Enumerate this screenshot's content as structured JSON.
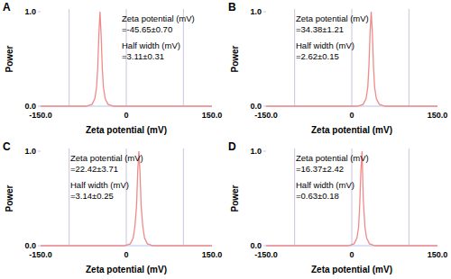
{
  "chart_data": [
    {
      "type": "line",
      "title": "A",
      "xlabel": "Zeta potential (mV)",
      "ylabel": "Power",
      "annotations": [
        "Zeta potential (mV)",
        "=-45.65±0.70",
        "Half width (mV)",
        "=3.11±0.31"
      ],
      "x": [
        -150,
        -70,
        -60,
        -55,
        -52,
        -50,
        -48,
        -46,
        -44,
        -42,
        -40,
        -37,
        -32,
        -22,
        150
      ],
      "values": [
        0,
        0,
        0.02,
        0.08,
        0.2,
        0.4,
        0.75,
        1.0,
        0.75,
        0.4,
        0.2,
        0.08,
        0.02,
        0,
        0
      ],
      "color": "#f08a8a",
      "grid": true,
      "xlim": [
        -150,
        150
      ],
      "ylim": [
        0,
        1
      ],
      "xticks": [
        {
          "value": -150,
          "label": "-150.0"
        },
        {
          "value": -100,
          "label": null
        },
        0,
        {
          "value": 100,
          "label": null
        },
        {
          "value": 150,
          "label": "150.0"
        }
      ],
      "yticks": [
        {
          "value": 0,
          "label": "0.0"
        },
        {
          "value": 1,
          "label": "1.0"
        }
      ]
    },
    {
      "type": "line",
      "title": "B",
      "xlabel": "Zeta potential (mV)",
      "ylabel": "Power",
      "annotations": [
        "Zeta potential (mV)",
        "=34.38±1.21",
        "Half width (mV)",
        "=2.62±0.15"
      ],
      "x": [
        -150,
        10,
        20,
        25,
        28,
        30,
        32,
        34,
        36,
        38,
        40,
        43,
        48,
        58,
        150
      ],
      "values": [
        0,
        0,
        0.02,
        0.08,
        0.2,
        0.42,
        0.78,
        1.0,
        0.78,
        0.42,
        0.2,
        0.08,
        0.02,
        0,
        0
      ],
      "color": "#f08a8a",
      "grid": true,
      "xlim": [
        -150,
        150
      ],
      "ylim": [
        0,
        1
      ],
      "xticks": [
        {
          "value": -150,
          "label": "-150.0"
        },
        {
          "value": -100,
          "label": null
        },
        0,
        {
          "value": 100,
          "label": null
        },
        {
          "value": 150,
          "label": "150.0"
        }
      ],
      "yticks": [
        {
          "value": 0,
          "label": "0.0"
        },
        {
          "value": 1,
          "label": "1.0"
        }
      ]
    },
    {
      "type": "line",
      "title": "C",
      "xlabel": "Zeta potential (mV)",
      "ylabel": "Power",
      "annotations": [
        "Zeta potential (mV)",
        "=22.42±3.71",
        "Half width (mV)",
        "=3.14±0.25"
      ],
      "x": [
        -150,
        -3,
        7,
        12,
        15,
        18,
        20,
        22,
        24,
        26,
        29,
        32,
        37,
        47,
        150
      ],
      "values": [
        0,
        0,
        0.02,
        0.08,
        0.2,
        0.42,
        0.78,
        1.0,
        0.78,
        0.42,
        0.2,
        0.08,
        0.02,
        0,
        0
      ],
      "color": "#f08a8a",
      "grid": true,
      "xlim": [
        -150,
        150
      ],
      "ylim": [
        0,
        1
      ],
      "xticks": [
        {
          "value": -150,
          "label": "-150.0"
        },
        {
          "value": -100,
          "label": null
        },
        0,
        {
          "value": 100,
          "label": null
        },
        {
          "value": 150,
          "label": "150.0"
        }
      ],
      "yticks": [
        {
          "value": 0,
          "label": "0.0"
        },
        {
          "value": 1,
          "label": "1.0"
        }
      ]
    },
    {
      "type": "line",
      "title": "D",
      "xlabel": "Zeta potential (mV)",
      "ylabel": "Power",
      "annotations": [
        "Zeta potential (mV)",
        "=16.37±2.42",
        "Half width (mV)",
        "=0.63±0.18"
      ],
      "x": [
        -150,
        -6,
        4,
        9,
        12,
        14,
        16,
        18,
        20,
        23,
        26,
        31,
        41,
        150
      ],
      "values": [
        0,
        0,
        0.02,
        0.08,
        0.2,
        0.45,
        0.8,
        1.0,
        0.5,
        0.2,
        0.08,
        0.02,
        0,
        0
      ],
      "color": "#f08a8a",
      "grid": true,
      "xlim": [
        -150,
        150
      ],
      "ylim": [
        0,
        1
      ],
      "xticks": [
        {
          "value": -150,
          "label": "-150.0"
        },
        {
          "value": -100,
          "label": null
        },
        0,
        {
          "value": 100,
          "label": null
        },
        {
          "value": 150,
          "label": "150.0"
        }
      ],
      "yticks": [
        {
          "value": 0,
          "label": "0.0"
        },
        {
          "value": 1,
          "label": "1.0"
        }
      ]
    }
  ]
}
